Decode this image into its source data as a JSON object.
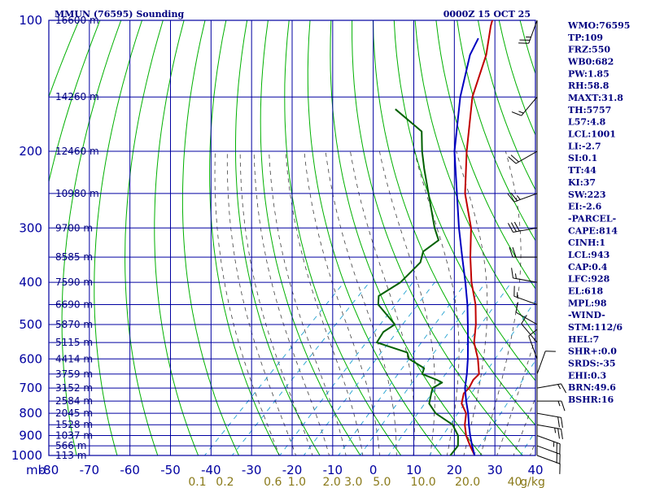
{
  "header": {
    "title": "MMUN (76595) Sounding",
    "valid_time": "0000Z 15 OCT 25"
  },
  "colors": {
    "grid": "#0000a0",
    "dry_adiabat": "#00b000",
    "moist_adiabat": "#000000",
    "mixing_ratio": "#20a0d0",
    "temperature": "#c00000",
    "dewpoint": "#006000",
    "parcel": "#0000c0"
  },
  "chart_data": {
    "type": "line",
    "title": "MMUN (76595) Sounding",
    "pressure_levels": [
      100,
      200,
      300,
      400,
      500,
      600,
      700,
      800,
      900,
      1000
    ],
    "pressure_range": [
      100,
      1000
    ],
    "pressure_scale": "log",
    "temperature_ticks": [
      -80,
      -70,
      -60,
      -50,
      -40,
      -30,
      -20,
      -10,
      0,
      10,
      20,
      30,
      40
    ],
    "temperature_tick_labels": [
      "-80",
      "-70",
      "-60",
      "-50",
      "-40",
      "-30",
      "-20",
      "-10",
      "0",
      "10",
      "20",
      "30",
      "40"
    ],
    "axis_unit_left": "mb",
    "skew": 1.0,
    "height_labels": [
      {
        "p": 100,
        "text": "16600 m"
      },
      {
        "p": 150,
        "text": "14260 m"
      },
      {
        "p": 200,
        "text": "12460 m"
      },
      {
        "p": 250,
        "text": "10980 m"
      },
      {
        "p": 300,
        "text": "9700 m"
      },
      {
        "p": 350,
        "text": "8585 m"
      },
      {
        "p": 400,
        "text": "7590 m"
      },
      {
        "p": 450,
        "text": "6690 m"
      },
      {
        "p": 500,
        "text": "5870 m"
      },
      {
        "p": 550,
        "text": "5115 m"
      },
      {
        "p": 600,
        "text": "4414 m"
      },
      {
        "p": 650,
        "text": "3759 m"
      },
      {
        "p": 700,
        "text": "3152 m"
      },
      {
        "p": 750,
        "text": "2584 m"
      },
      {
        "p": 800,
        "text": "2045 m"
      },
      {
        "p": 850,
        "text": "1528 m"
      },
      {
        "p": 900,
        "text": "1037 m"
      },
      {
        "p": 950,
        "text": "566 m"
      },
      {
        "p": 1000,
        "text": "113 m"
      }
    ],
    "mixing_ratio_labels": [
      "0.1",
      "0.2",
      "0.6",
      "1.0",
      "2.0",
      "3.0",
      "5.0",
      "10.0",
      "20.0",
      "40",
      "g/kg"
    ],
    "series": [
      {
        "key": "temperature",
        "points": [
          [
            1009,
            26
          ],
          [
            1000,
            25
          ],
          [
            950,
            21.5
          ],
          [
            900,
            18
          ],
          [
            850,
            15
          ],
          [
            800,
            12.5
          ],
          [
            760,
            9
          ],
          [
            720,
            7
          ],
          [
            700,
            7
          ],
          [
            670,
            6
          ],
          [
            650,
            6
          ],
          [
            600,
            2
          ],
          [
            550,
            -3
          ],
          [
            500,
            -7
          ],
          [
            450,
            -12
          ],
          [
            400,
            -18.5
          ],
          [
            350,
            -25
          ],
          [
            300,
            -32
          ],
          [
            250,
            -42
          ],
          [
            200,
            -52
          ],
          [
            150,
            -64
          ],
          [
            120,
            -71
          ],
          [
            103,
            -77
          ],
          [
            100,
            -78
          ]
        ]
      },
      {
        "key": "dewpoint",
        "points": [
          [
            1009,
            20
          ],
          [
            1000,
            19
          ],
          [
            950,
            18.5
          ],
          [
            900,
            16
          ],
          [
            850,
            12
          ],
          [
            800,
            5
          ],
          [
            760,
            1
          ],
          [
            720,
            -1
          ],
          [
            700,
            -2
          ],
          [
            680,
            -1
          ],
          [
            670,
            -3
          ],
          [
            650,
            -8
          ],
          [
            630,
            -9
          ],
          [
            600,
            -15
          ],
          [
            580,
            -17
          ],
          [
            550,
            -27
          ],
          [
            520,
            -28
          ],
          [
            500,
            -27
          ],
          [
            450,
            -36
          ],
          [
            430,
            -38
          ],
          [
            400,
            -36
          ],
          [
            380,
            -36
          ],
          [
            360,
            -36
          ],
          [
            340,
            -38
          ],
          [
            320,
            -37
          ],
          [
            300,
            -41
          ],
          [
            250,
            -51
          ],
          [
            220,
            -58
          ],
          [
            200,
            -63
          ],
          [
            180,
            -68
          ],
          [
            160,
            -80
          ]
        ]
      },
      {
        "key": "parcel",
        "points": [
          [
            1009,
            26
          ],
          [
            1000,
            25
          ],
          [
            950,
            22
          ],
          [
            900,
            19
          ],
          [
            850,
            16
          ],
          [
            800,
            13
          ],
          [
            750,
            9.5
          ],
          [
            700,
            6
          ],
          [
            650,
            3
          ],
          [
            600,
            -0.5
          ],
          [
            550,
            -4.5
          ],
          [
            500,
            -9
          ],
          [
            450,
            -14
          ],
          [
            400,
            -20
          ],
          [
            350,
            -27
          ],
          [
            300,
            -35
          ],
          [
            250,
            -44
          ],
          [
            200,
            -55
          ],
          [
            150,
            -67
          ],
          [
            120,
            -75
          ],
          [
            110,
            -77
          ]
        ]
      }
    ],
    "wind_barbs": [
      {
        "p": 100,
        "dir": 200,
        "kt": 25
      },
      {
        "p": 150,
        "dir": 220,
        "kt": 15
      },
      {
        "p": 200,
        "dir": 240,
        "kt": 20
      },
      {
        "p": 250,
        "dir": 250,
        "kt": 25
      },
      {
        "p": 300,
        "dir": 260,
        "kt": 30
      },
      {
        "p": 350,
        "dir": 270,
        "kt": 20
      },
      {
        "p": 400,
        "dir": 280,
        "kt": 15
      },
      {
        "p": 450,
        "dir": 290,
        "kt": 15
      },
      {
        "p": 500,
        "dir": 300,
        "kt": 10
      },
      {
        "p": 550,
        "dir": 320,
        "kt": 10
      },
      {
        "p": 600,
        "dir": 340,
        "kt": 10
      },
      {
        "p": 650,
        "dir": 20,
        "kt": 10
      },
      {
        "p": 700,
        "dir": 80,
        "kt": 15
      },
      {
        "p": 750,
        "dir": 90,
        "kt": 15
      },
      {
        "p": 800,
        "dir": 100,
        "kt": 20
      },
      {
        "p": 850,
        "dir": 100,
        "kt": 25
      },
      {
        "p": 900,
        "dir": 110,
        "kt": 25
      },
      {
        "p": 950,
        "dir": 110,
        "kt": 20
      },
      {
        "p": 1000,
        "dir": 110,
        "kt": 10
      }
    ]
  },
  "indices": [
    "WMO:76595",
    "TP:109",
    "FRZ:550",
    "WB0:682",
    "PW:1.85",
    "RH:58.8",
    "MAXT:31.8",
    "TH:5757",
    "L57:4.8",
    "LCL:1001",
    "LI:-2.7",
    "SI:0.1",
    "TT:44",
    "KI:37",
    "SW:223",
    "EI:-2.6",
    "-PARCEL-",
    "CAPE:814",
    "CINH:1",
    "LCL:943",
    "CAP:0.4",
    "LFC:928",
    "EL:618",
    "MPL:98",
    "-WIND-",
    "STM:112/6",
    "HEL:7",
    "SHR+:0.0",
    "SRDS:-35",
    "EHI:0.3",
    "BRN:49.6",
    "BSHR:16"
  ]
}
